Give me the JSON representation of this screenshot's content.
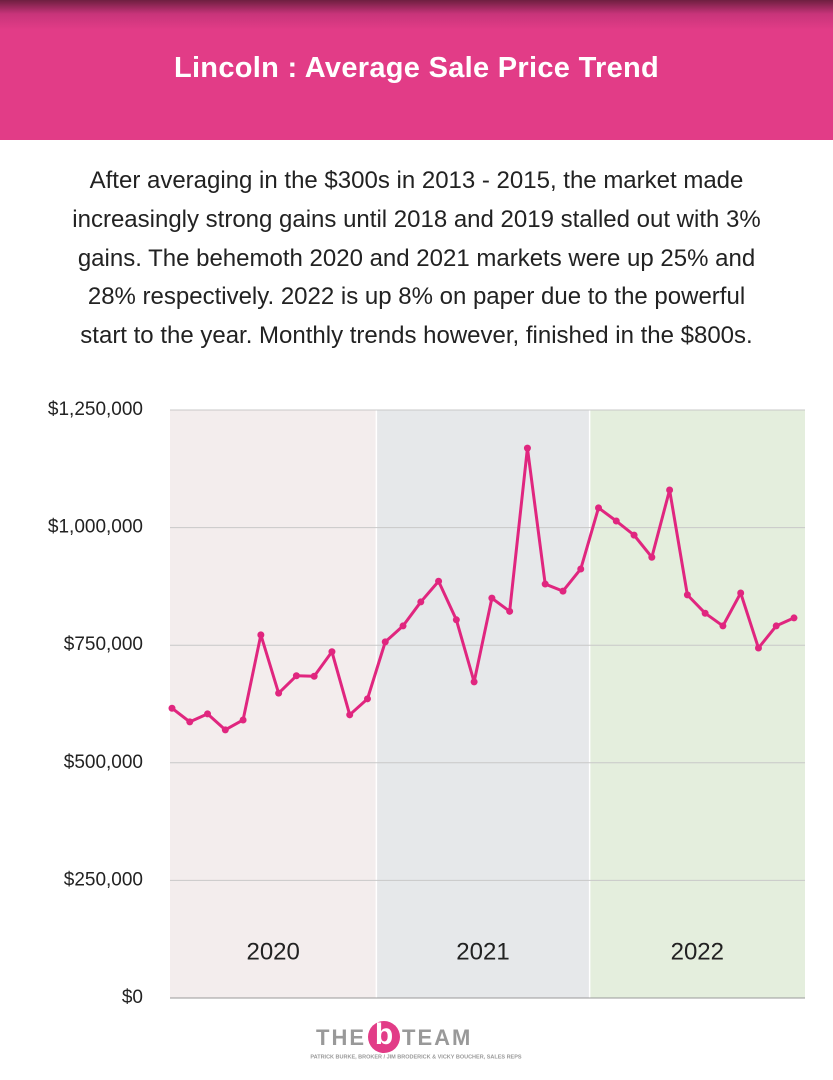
{
  "chart_data": {
    "type": "line",
    "title": "Lincoln : Average Sale Price Trend",
    "subtitle_lines": [
      "After averaging in the $300s in 2013 - 2015, the market made",
      "increasingly strong gains until 2018 and 2019 stalled out with 3%",
      "gains. The behemoth 2020 and 2021 markets were up 25% and",
      "28% respectively. 2022 is up 8% on paper due to the powerful",
      "start to the year. Monthly trends however, finished in the $800s."
    ],
    "categories": [
      null,
      null,
      null,
      null,
      null,
      null,
      null,
      null,
      null,
      null,
      null,
      null,
      null,
      null,
      null,
      null,
      null,
      null,
      null,
      null,
      null,
      null,
      null,
      null,
      null,
      null,
      null,
      null,
      null,
      null,
      null,
      null,
      null,
      null,
      null,
      null
    ],
    "periods": [
      {
        "label": "2020",
        "color": "#f3eded"
      },
      {
        "label": "2021",
        "color": "#e6e8ea"
      },
      {
        "label": "2022",
        "color": "#e4eedd"
      }
    ],
    "series": [
      {
        "name": "Average Sale Price",
        "color": "#e0267f",
        "values": [
          616000,
          587000,
          604000,
          570000,
          591000,
          772000,
          648000,
          685000,
          684000,
          736000,
          602000,
          636000,
          757000,
          791000,
          842000,
          886000,
          804000,
          672000,
          850000,
          822000,
          1169000,
          880000,
          865000,
          912000,
          1042000,
          1014000,
          984000,
          937000,
          1080000,
          857000,
          818000,
          791000,
          861000,
          744000,
          791000,
          808000
        ]
      }
    ],
    "ylim": [
      0,
      1250000
    ],
    "yticks": [
      {
        "value": 0,
        "label": "$0"
      },
      {
        "value": 250000,
        "label": "$250,000"
      },
      {
        "value": 500000,
        "label": "$500,000"
      },
      {
        "value": 750000,
        "label": "$750,000"
      },
      {
        "value": 1000000,
        "label": "$1,000,000"
      },
      {
        "value": 1250000,
        "label": "$1,250,000"
      }
    ],
    "grid": true
  },
  "footer": {
    "logo_left": "THE",
    "logo_mark": "b",
    "logo_right": "TEAM",
    "credits": "PATRICK BURKE, BROKER / JIM BRODERICK & VICKY BOUCHER, SALES REPS"
  }
}
